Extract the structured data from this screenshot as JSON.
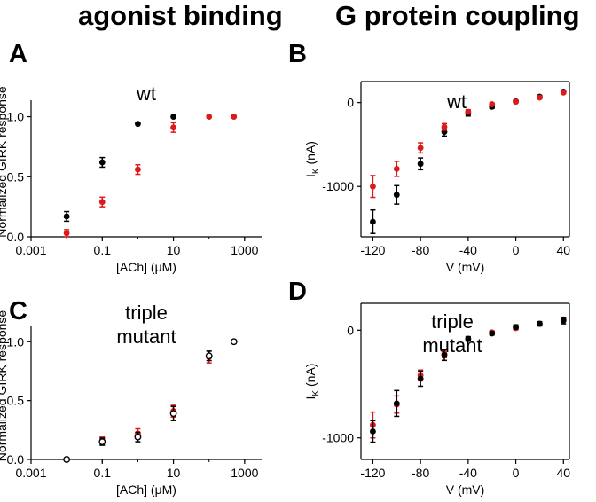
{
  "headers": {
    "left": "agonist binding",
    "right": "G protein coupling"
  },
  "colors": {
    "black": "#000000",
    "red": "#dd1a1a"
  },
  "chart_data": [
    {
      "panel": "A",
      "type": "scatter",
      "title": "wt",
      "xlabel": "[ACh] (μM)",
      "ylabel": "Normalized GIRK response",
      "xscale": "log",
      "xlim": [
        0.001,
        3000
      ],
      "ylim": [
        0,
        1.1
      ],
      "xticks": [
        0.001,
        0.1,
        10,
        1000
      ],
      "xticklabels": [
        "0.001",
        "0.1",
        "10",
        "1000"
      ],
      "yticks": [
        0,
        0.5,
        1.0
      ],
      "yticklabels": [
        "0.0",
        "0.5",
        "1.0"
      ],
      "series": [
        {
          "color": "#000000",
          "filled": true,
          "x": [
            0.01,
            0.1,
            1,
            10
          ],
          "y": [
            0.17,
            0.62,
            0.94,
            1.0
          ],
          "err": [
            0.04,
            0.04,
            0,
            0
          ]
        },
        {
          "color": "#dd1a1a",
          "filled": true,
          "x": [
            0.01,
            0.1,
            1,
            10,
            100,
            500
          ],
          "y": [
            0.03,
            0.29,
            0.56,
            0.91,
            1.0,
            1.0
          ],
          "err": [
            0.03,
            0.04,
            0.04,
            0.04,
            0,
            0
          ]
        }
      ]
    },
    {
      "panel": "B",
      "type": "scatter",
      "title": "wt",
      "xlabel": "V (mV)",
      "ylabel": "I_K (nA)",
      "xlim": [
        -130,
        45
      ],
      "ylim": [
        -1600,
        250
      ],
      "xticks": [
        -120,
        -80,
        -40,
        0,
        40
      ],
      "xticklabels": [
        "-120",
        "-80",
        "-40",
        "0",
        "40"
      ],
      "yticks": [
        -1000,
        0
      ],
      "yticklabels": [
        "-1000",
        "0"
      ],
      "series": [
        {
          "color": "#000000",
          "filled": true,
          "x": [
            -120,
            -100,
            -80,
            -60,
            -40,
            -20,
            0,
            20,
            40
          ],
          "y": [
            -1420,
            -1100,
            -730,
            -350,
            -130,
            -50,
            15,
            70,
            130
          ],
          "err": [
            140,
            110,
            70,
            50,
            30,
            20,
            15,
            15,
            15
          ]
        },
        {
          "color": "#dd1a1a",
          "filled": true,
          "x": [
            -120,
            -100,
            -80,
            -60,
            -40,
            -20,
            0,
            20,
            40
          ],
          "y": [
            -1000,
            -790,
            -540,
            -290,
            -110,
            -20,
            10,
            60,
            120
          ],
          "err": [
            130,
            90,
            60,
            40,
            25,
            15,
            15,
            15,
            15
          ]
        }
      ]
    },
    {
      "panel": "C",
      "type": "scatter",
      "title": "triple\nmutant",
      "xlabel": "[ACh] (μM)",
      "ylabel": "Normalized GIRK response",
      "xscale": "log",
      "xlim": [
        0.001,
        3000
      ],
      "ylim": [
        0,
        1.1
      ],
      "xticks": [
        0.001,
        0.1,
        10,
        1000
      ],
      "xticklabels": [
        "0.001",
        "0.1",
        "10",
        "1000"
      ],
      "yticks": [
        0,
        0.5,
        1.0
      ],
      "yticklabels": [
        "0.0",
        "0.5",
        "1.0"
      ],
      "series": [
        {
          "color": "#dd1a1a",
          "filled": true,
          "x": [
            0.01,
            0.1,
            1,
            10,
            100,
            500
          ],
          "y": [
            0,
            0.16,
            0.22,
            0.41,
            0.87,
            1.0
          ],
          "err": [
            0,
            0.03,
            0.04,
            0.05,
            0.05,
            0
          ]
        },
        {
          "color": "#000000",
          "filled": false,
          "x": [
            0.01,
            0.1,
            1,
            10,
            100,
            500
          ],
          "y": [
            0,
            0.15,
            0.19,
            0.39,
            0.88,
            1.0
          ],
          "err": [
            0,
            0.03,
            0.04,
            0.06,
            0.04,
            0
          ]
        }
      ]
    },
    {
      "panel": "D",
      "type": "scatter",
      "title": "triple\nmutant",
      "xlabel": "V (mV)",
      "ylabel": "I_K (nA)",
      "xlim": [
        -130,
        45
      ],
      "ylim": [
        -1200,
        250
      ],
      "xticks": [
        -120,
        -80,
        -40,
        0,
        40
      ],
      "xticklabels": [
        "-120",
        "-80",
        "-40",
        "0",
        "40"
      ],
      "yticks": [
        -1000,
        0
      ],
      "yticklabels": [
        "-1000",
        "0"
      ],
      "series": [
        {
          "color": "#dd1a1a",
          "filled": true,
          "x": [
            -120,
            -100,
            -80,
            -60,
            -40,
            -20,
            0,
            20,
            40
          ],
          "y": [
            -880,
            -690,
            -420,
            -220,
            -80,
            -20,
            20,
            60,
            100
          ],
          "err": [
            120,
            80,
            50,
            35,
            20,
            15,
            15,
            15,
            20
          ]
        },
        {
          "color": "#000000",
          "filled": true,
          "x": [
            -120,
            -100,
            -80,
            -60,
            -40,
            -20,
            0,
            20,
            40
          ],
          "y": [
            -940,
            -680,
            -450,
            -230,
            -80,
            -30,
            30,
            60,
            90
          ],
          "err": [
            100,
            120,
            70,
            50,
            20,
            15,
            20,
            20,
            30
          ]
        }
      ]
    }
  ]
}
